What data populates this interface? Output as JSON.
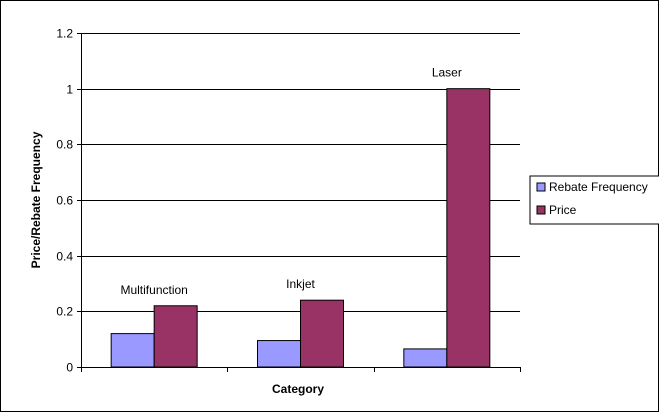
{
  "chart_data": {
    "type": "bar",
    "categories": [
      "Multifunction",
      "Inkjet",
      "Laser"
    ],
    "series": [
      {
        "name": "Rebate Frequency",
        "values": [
          0.12,
          0.095,
          0.065
        ],
        "color": "#9999FF"
      },
      {
        "name": "Price",
        "values": [
          0.22,
          0.24,
          1.0
        ],
        "color": "#993366"
      }
    ],
    "title": "",
    "xlabel": "Category",
    "ylabel": "Price/Rebate Frequency",
    "ylim": [
      0,
      1.2
    ],
    "yticks": [
      "0",
      "0.2",
      "0.4",
      "0.6",
      "0.8",
      "1",
      "1.2"
    ],
    "grid": true,
    "legend": "right",
    "annotations": [
      "Multifunction",
      "Inkjet",
      "Laser"
    ],
    "show_category_tick_labels": false
  }
}
